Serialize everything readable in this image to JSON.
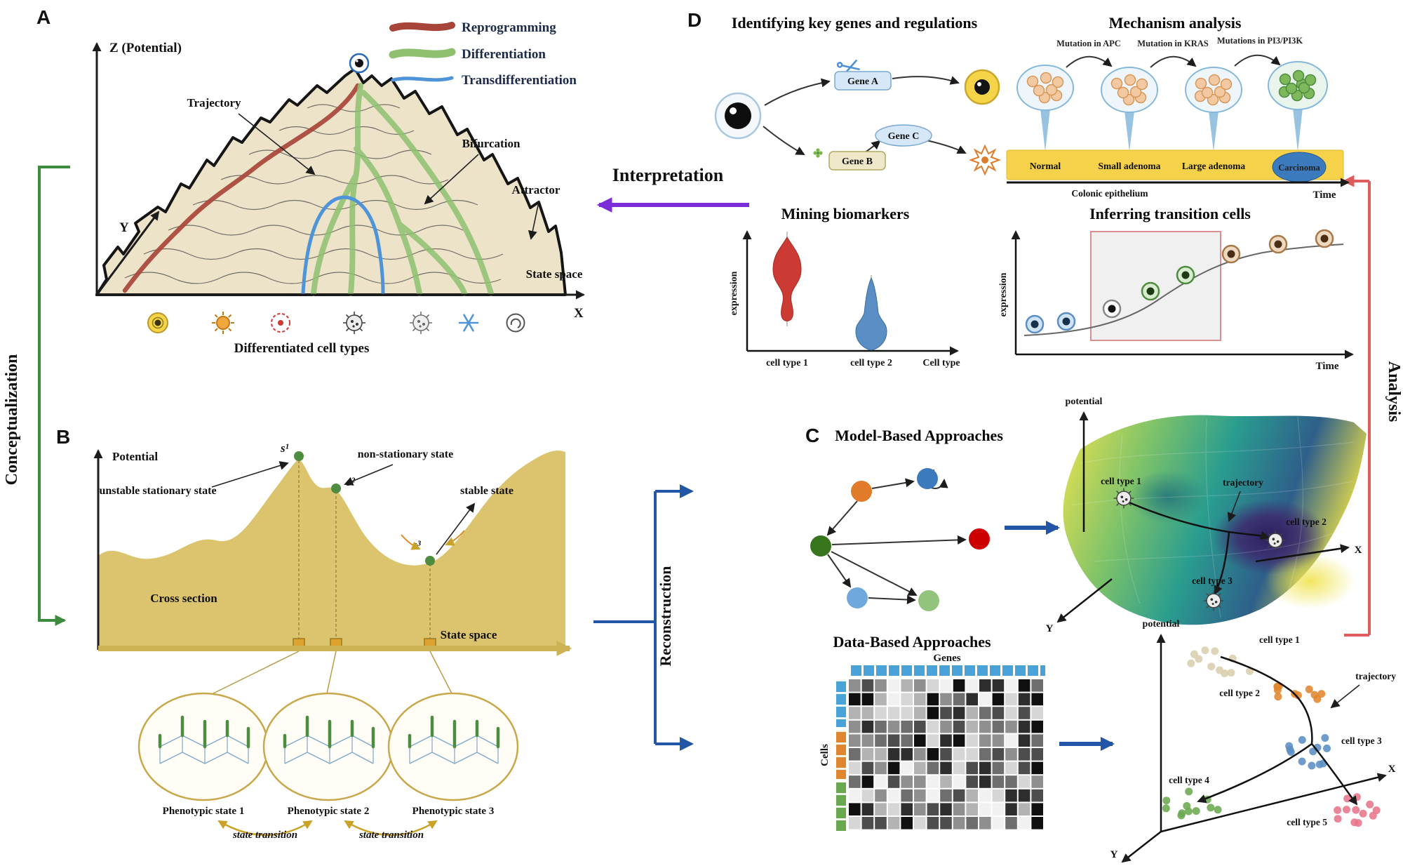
{
  "figure": {
    "panels": {
      "a": {
        "id": "A",
        "axis_z": "Z (Potential)",
        "axis_y": "Y",
        "axis_x": "X",
        "trajectory": "Trajectory",
        "bifurcation": "Bifurcation",
        "attractor": "Attractor",
        "state_space": "State space",
        "differentiated_cell_types": "Differentiated cell types",
        "legend": [
          {
            "label": "Reprogramming",
            "color": "#a8453a"
          },
          {
            "label": "Differentiation",
            "color": "#8fc070"
          },
          {
            "label": "Transdifferentiation",
            "color": "#4f93d8"
          }
        ]
      },
      "b": {
        "id": "B",
        "axis_potential": "Potential",
        "s1": "s¹",
        "s2": "s²",
        "s3": "s³",
        "unstable_state": "unstable stationary state",
        "non_stationary_state": "non-stationary state",
        "stable_state": "stable state",
        "cross_section": "Cross section",
        "state_space": "State space",
        "phenotypic_states": [
          "Phenotypic state 1",
          "Phenotypic state 2",
          "Phenotypic state 3"
        ],
        "state_transition": "state transition"
      },
      "c": {
        "id": "C",
        "model_based_title": "Model-Based Approaches",
        "data_based_title": "Data-Based Approaches",
        "heatmap": {
          "genes": "Genes",
          "cells": "Cells",
          "rows": 11,
          "cols": 15
        },
        "surface": {
          "potential": "potential",
          "trajectory": "trajectory",
          "axis_x": "X",
          "axis_y": "Y",
          "cell_type_1": "cell type 1",
          "cell_type_2": "cell type 2",
          "cell_type_3": "cell type 3"
        },
        "scatter": {
          "potential": "potential",
          "trajectory": "trajectory",
          "axis_x": "X",
          "axis_y": "Y",
          "clusters": [
            {
              "label": "cell type 1",
              "color": "#d9cfae"
            },
            {
              "label": "cell type 2",
              "color": "#e0862e"
            },
            {
              "label": "cell type 3",
              "color": "#5b8ec4"
            },
            {
              "label": "cell type 4",
              "color": "#6aa84f"
            },
            {
              "label": "cell type 5",
              "color": "#e8748a"
            }
          ]
        }
      },
      "d": {
        "id": "D",
        "genes_title": "Identifying key genes and regulations",
        "mechanism_title": "Mechanism analysis",
        "biomarkers_title": "Mining biomarkers",
        "transition_title": "Inferring transition cells",
        "gene_a": "Gene A",
        "gene_b": "Gene B",
        "gene_c": "Gene C",
        "mutations": [
          "Mutation in APC",
          "Mutation in KRAS",
          "Mutations in PI3/PI3K"
        ],
        "stages": [
          "Normal",
          "Small adenoma",
          "Large adenoma",
          "Carcinoma"
        ],
        "colonic_epithelium": "Colonic epithelium",
        "time": "Time",
        "biomarkers": {
          "expression": "expression",
          "cell_type_1": "cell type 1",
          "cell_type_2": "cell type 2",
          "cell_type": "Cell type"
        },
        "transition": {
          "expression": "expression",
          "time": "Time"
        }
      }
    },
    "connectors": {
      "conceptualization": {
        "label": "Conceptualization",
        "color": "#3d8b3d"
      },
      "interpretation": {
        "label": "Interpretation",
        "color": "#7a2dd8"
      },
      "reconstruction": {
        "label": "Reconstruction",
        "color": "#2456a8"
      },
      "analysis": {
        "label": "Analysis",
        "color": "#e05c5c"
      }
    }
  }
}
